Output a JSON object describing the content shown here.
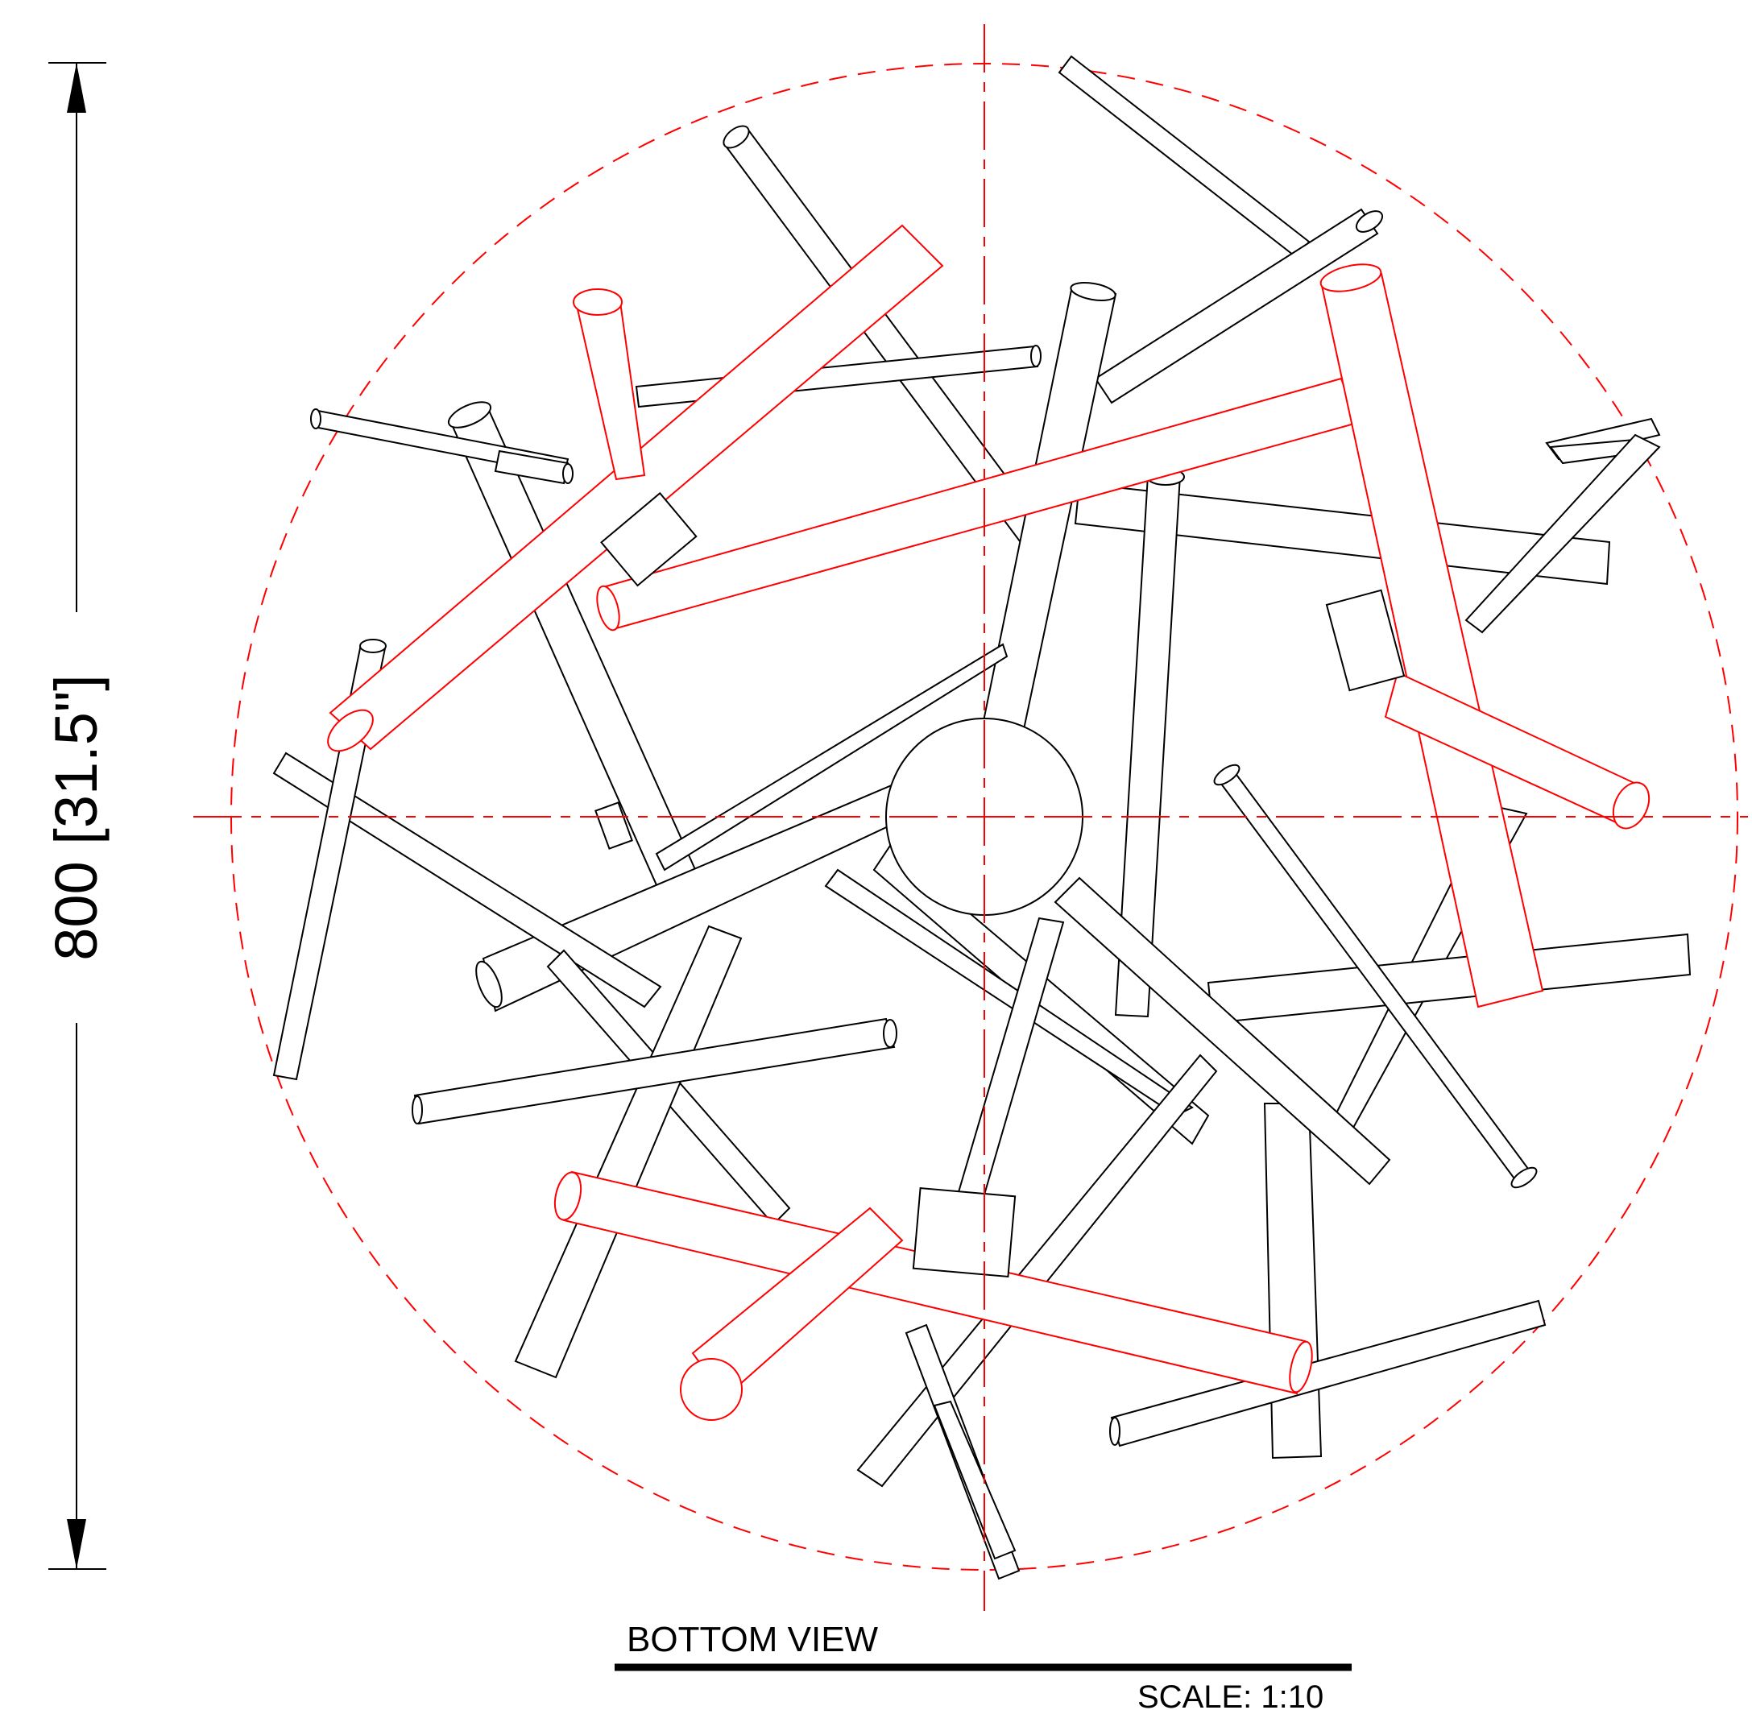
{
  "dimension": {
    "label": "800 [31.5\"]"
  },
  "view": {
    "title": "BOTTOM  VIEW",
    "scale": "SCALE: 1:10"
  },
  "colors": {
    "outline": "#000000",
    "highlight": "#ff0000",
    "center_marks": "#ff0000"
  }
}
